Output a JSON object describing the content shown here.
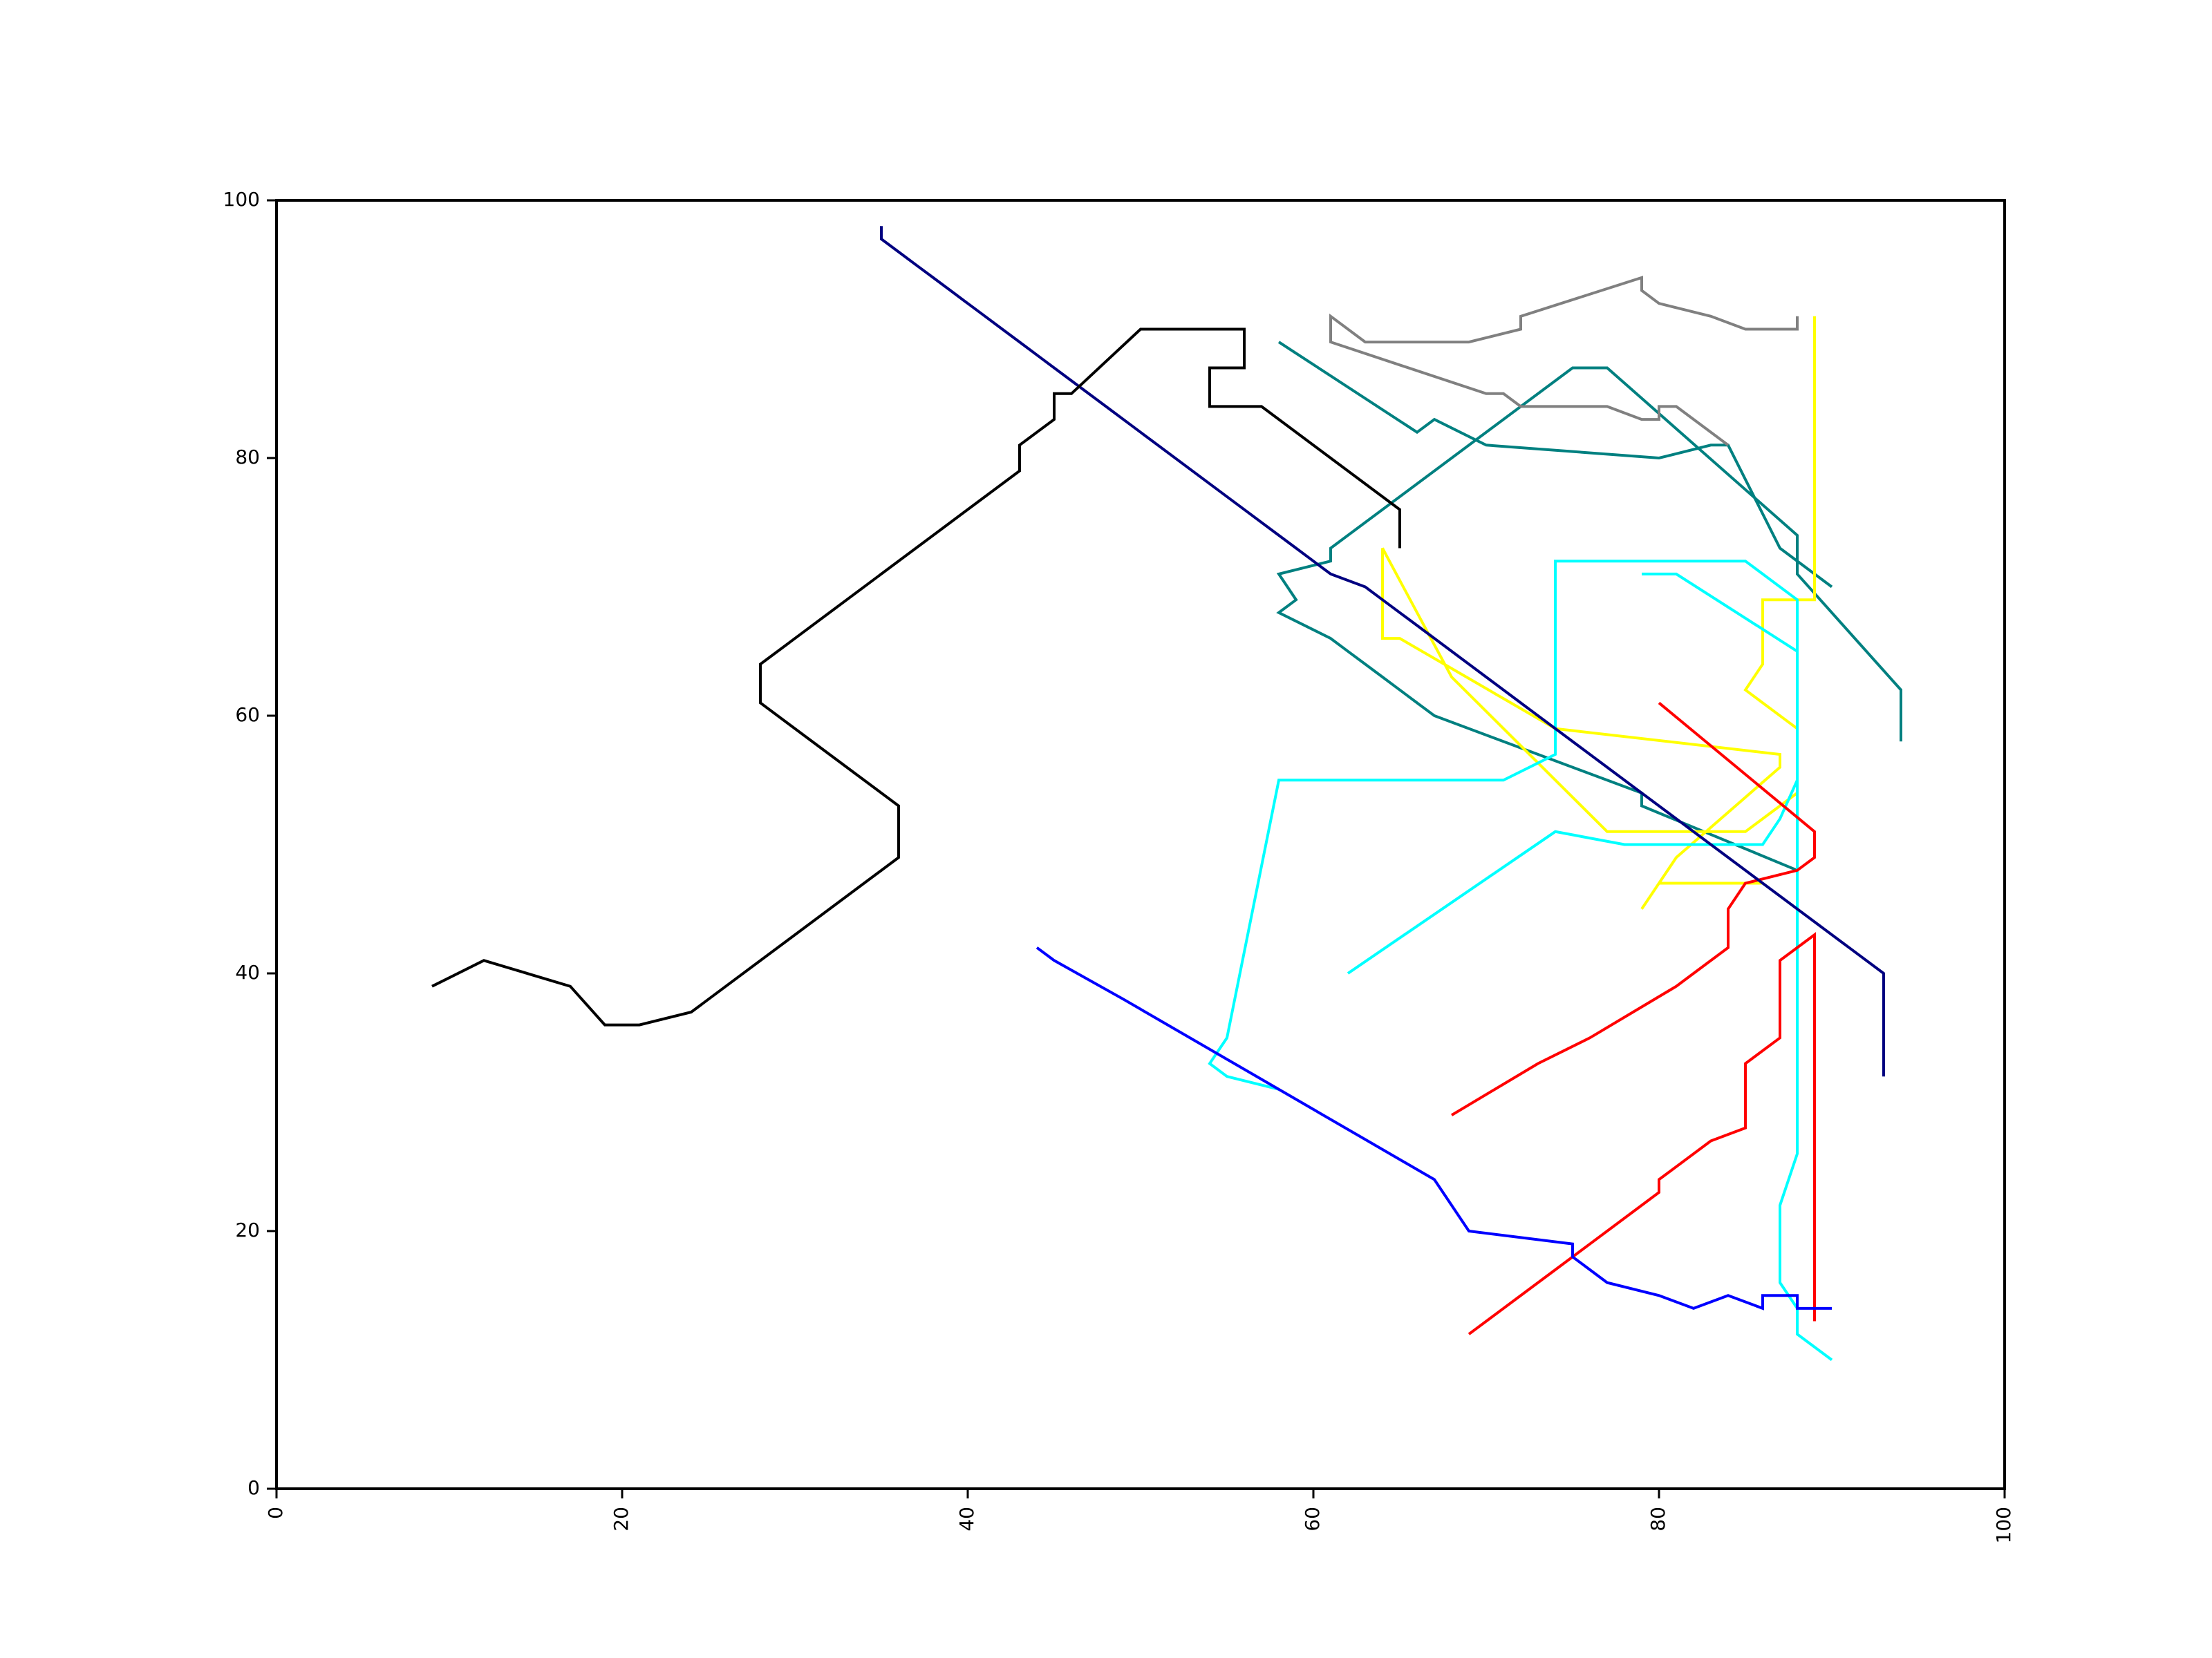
{
  "chart_data": {
    "type": "line",
    "title": "",
    "xlabel": "",
    "ylabel": "",
    "xlim": [
      0,
      100
    ],
    "ylim": [
      0,
      100
    ],
    "x_ticks": [
      "0",
      "20",
      "40",
      "60",
      "80",
      "100"
    ],
    "y_ticks": [
      "0",
      "20",
      "40",
      "60",
      "80",
      "100"
    ],
    "x_tick_rotation": "vertical",
    "grid": false,
    "legend": "none",
    "series": [
      {
        "color": "#008080",
        "x": [
          94,
          94,
          88,
          88,
          77,
          75,
          61,
          61,
          58,
          59,
          58,
          61,
          62,
          63,
          64,
          65,
          66,
          67,
          79,
          79,
          88
        ],
        "y": [
          58,
          62,
          71,
          74,
          87,
          87,
          73,
          72,
          71,
          69,
          68,
          66,
          65,
          64,
          63,
          62,
          61,
          60,
          54,
          53,
          48
        ]
      },
      {
        "color": "#008080",
        "x": [
          58,
          66,
          66,
          67,
          67,
          70,
          70,
          80,
          80,
          83,
          84,
          87,
          90
        ],
        "y": [
          89,
          82,
          82,
          83,
          83,
          81,
          81,
          80,
          80,
          81,
          81,
          73,
          70
        ]
      },
      {
        "color": "#FFFF00",
        "x": [
          89,
          89,
          86,
          86,
          85,
          88,
          88,
          85,
          77,
          68,
          64,
          64,
          65,
          74,
          87,
          87,
          81,
          79,
          80,
          86
        ],
        "y": [
          91,
          69,
          69,
          64,
          62,
          59,
          54,
          51,
          51,
          63,
          73,
          66,
          66,
          59,
          57,
          56,
          49,
          45,
          47,
          47
        ]
      },
      {
        "color": "#00FFFF",
        "x": [
          90,
          88,
          88,
          87,
          87,
          88,
          88,
          85,
          74,
          74,
          71,
          58,
          55,
          54,
          55,
          58
        ],
        "y": [
          10,
          12,
          14,
          16,
          22,
          26,
          69,
          72,
          72,
          57,
          55,
          55,
          35,
          33,
          32,
          31
        ]
      },
      {
        "color": "#00FFFF",
        "x": [
          79,
          81,
          88,
          88,
          87,
          86,
          78,
          74,
          62
        ],
        "y": [
          71,
          71,
          65,
          55,
          52,
          50,
          50,
          51,
          40
        ]
      },
      {
        "color": "#FF0000",
        "x": [
          89,
          89,
          87,
          87,
          85,
          85,
          83,
          81,
          80,
          80,
          76,
          74,
          73,
          69
        ],
        "y": [
          13,
          43,
          41,
          35,
          33,
          28,
          27,
          25,
          24,
          23,
          19,
          17,
          16,
          12
        ]
      },
      {
        "color": "#FF0000",
        "x": [
          80,
          89,
          89,
          88,
          85,
          84,
          84,
          82,
          81,
          76,
          73,
          68
        ],
        "y": [
          61,
          51,
          49,
          48,
          47,
          45,
          42,
          40,
          39,
          35,
          33,
          29
        ]
      },
      {
        "color": "#0000FF",
        "x": [
          90,
          88,
          88,
          86,
          86,
          84,
          82,
          80,
          77,
          75,
          75,
          69,
          67,
          49,
          45,
          44
        ],
        "y": [
          14,
          14,
          15,
          15,
          14,
          15,
          14,
          15,
          16,
          18,
          19,
          20,
          24,
          38,
          41,
          42
        ]
      },
      {
        "color": "#000080",
        "x": [
          93,
          93,
          91,
          72,
          66,
          65,
          64,
          63,
          61,
          60,
          59,
          58,
          48,
          46,
          45,
          44,
          43,
          42,
          41,
          40,
          39,
          38,
          37,
          36,
          35,
          35
        ],
        "y": [
          32,
          40,
          42,
          61,
          67,
          68,
          69,
          70,
          71,
          72,
          73,
          74,
          84,
          86,
          87,
          88,
          89,
          90,
          91,
          92,
          93,
          94,
          95,
          96,
          97,
          98
        ]
      },
      {
        "color": "#000000",
        "x": [
          65,
          65,
          57,
          54,
          54,
          56,
          56,
          50,
          46,
          45,
          45,
          44,
          43,
          43,
          28,
          28,
          33,
          36,
          36,
          26,
          24,
          21,
          19,
          17,
          12,
          9
        ],
        "y": [
          73,
          76,
          84,
          84,
          87,
          87,
          90,
          90,
          85,
          85,
          83,
          82,
          81,
          79,
          64,
          61,
          56,
          53,
          49,
          39,
          37,
          36,
          36,
          39,
          41,
          39
        ]
      },
      {
        "color": "#808080",
        "x": [
          84,
          81,
          80,
          80,
          79,
          77,
          76,
          72,
          71,
          70,
          61,
          61,
          63,
          64,
          68,
          69,
          72,
          72,
          79,
          79,
          80,
          83,
          85,
          88,
          88
        ],
        "y": [
          81,
          84,
          84,
          83,
          83,
          84,
          84,
          84,
          85,
          85,
          89,
          91,
          89,
          89,
          89,
          89,
          90,
          91,
          94,
          93,
          92,
          91,
          90,
          90,
          91
        ]
      }
    ]
  }
}
